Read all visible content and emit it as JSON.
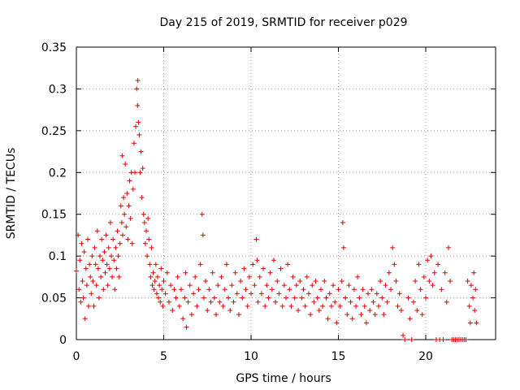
{
  "chart_data": {
    "type": "scatter",
    "title": "Day 215 of 2019, SRMTID for receiver p029",
    "xlabel": "GPS time / hours",
    "ylabel": "SRMTID / TECUs",
    "xlim": [
      0,
      24
    ],
    "ylim": [
      0,
      0.35
    ],
    "xticks": [
      0,
      5,
      10,
      15,
      20
    ],
    "xtick_labels": [
      "0",
      "5",
      "10",
      "15",
      "20"
    ],
    "yticks": [
      0,
      0.05,
      0.1,
      0.15,
      0.2,
      0.25,
      0.3,
      0.35
    ],
    "ytick_labels": [
      "0",
      "0.05",
      "0.1",
      "0.15",
      "0.2",
      "0.25",
      "0.3",
      "0.35"
    ],
    "grid": true,
    "marker": "+",
    "marker_color": "#e00000",
    "series": [
      {
        "name": "SRMTID",
        "points": [
          [
            0.0,
            0.082
          ],
          [
            0.1,
            0.125
          ],
          [
            0.15,
            0.06
          ],
          [
            0.2,
            0.095
          ],
          [
            0.25,
            0.045
          ],
          [
            0.3,
            0.115
          ],
          [
            0.35,
            0.07
          ],
          [
            0.4,
            0.05
          ],
          [
            0.45,
            0.105
          ],
          [
            0.5,
            0.025
          ],
          [
            0.55,
            0.085
          ],
          [
            0.6,
            0.065
          ],
          [
            0.65,
            0.12
          ],
          [
            0.7,
            0.04
          ],
          [
            0.75,
            0.09
          ],
          [
            0.8,
            0.075
          ],
          [
            0.85,
            0.055
          ],
          [
            0.9,
            0.1
          ],
          [
            0.95,
            0.07
          ],
          [
            1.0,
            0.04
          ],
          [
            1.05,
            0.11
          ],
          [
            1.1,
            0.09
          ],
          [
            1.15,
            0.065
          ],
          [
            1.2,
            0.13
          ],
          [
            1.25,
            0.085
          ],
          [
            1.3,
            0.05
          ],
          [
            1.35,
            0.1
          ],
          [
            1.4,
            0.075
          ],
          [
            1.45,
            0.12
          ],
          [
            1.5,
            0.095
          ],
          [
            1.55,
            0.06
          ],
          [
            1.6,
            0.105
          ],
          [
            1.65,
            0.08
          ],
          [
            1.7,
            0.125
          ],
          [
            1.75,
            0.09
          ],
          [
            1.8,
            0.065
          ],
          [
            1.85,
            0.11
          ],
          [
            1.9,
            0.085
          ],
          [
            1.95,
            0.14
          ],
          [
            2.0,
            0.1
          ],
          [
            2.05,
            0.075
          ],
          [
            2.1,
            0.12
          ],
          [
            2.15,
            0.095
          ],
          [
            2.2,
            0.06
          ],
          [
            2.25,
            0.11
          ],
          [
            2.3,
            0.085
          ],
          [
            2.35,
            0.13
          ],
          [
            2.4,
            0.1
          ],
          [
            2.45,
            0.075
          ],
          [
            2.5,
            0.115
          ],
          [
            2.55,
            0.16
          ],
          [
            2.6,
            0.14
          ],
          [
            2.62,
            0.22
          ],
          [
            2.65,
            0.125
          ],
          [
            2.7,
            0.17
          ],
          [
            2.75,
            0.15
          ],
          [
            2.8,
            0.21
          ],
          [
            2.85,
            0.135
          ],
          [
            2.9,
            0.175
          ],
          [
            2.95,
            0.12
          ],
          [
            3.0,
            0.16
          ],
          [
            3.05,
            0.19
          ],
          [
            3.1,
            0.145
          ],
          [
            3.15,
            0.2
          ],
          [
            3.2,
            0.115
          ],
          [
            3.25,
            0.18
          ],
          [
            3.3,
            0.235
          ],
          [
            3.35,
            0.2
          ],
          [
            3.4,
            0.255
          ],
          [
            3.45,
            0.3
          ],
          [
            3.5,
            0.28
          ],
          [
            3.52,
            0.31
          ],
          [
            3.55,
            0.26
          ],
          [
            3.6,
            0.245
          ],
          [
            3.65,
            0.2
          ],
          [
            3.7,
            0.225
          ],
          [
            3.75,
            0.17
          ],
          [
            3.8,
            0.205
          ],
          [
            3.85,
            0.15
          ],
          [
            3.9,
            0.14
          ],
          [
            3.95,
            0.115
          ],
          [
            4.0,
            0.13
          ],
          [
            4.05,
            0.1
          ],
          [
            4.1,
            0.145
          ],
          [
            4.15,
            0.12
          ],
          [
            4.2,
            0.09
          ],
          [
            4.25,
            0.075
          ],
          [
            4.3,
            0.11
          ],
          [
            4.35,
            0.065
          ],
          [
            4.4,
            0.08
          ],
          [
            4.45,
            0.06
          ],
          [
            4.5,
            0.07
          ],
          [
            4.55,
            0.09
          ],
          [
            4.6,
            0.055
          ],
          [
            4.65,
            0.075
          ],
          [
            4.7,
            0.05
          ],
          [
            4.75,
            0.065
          ],
          [
            4.8,
            0.045
          ],
          [
            4.85,
            0.085
          ],
          [
            4.9,
            0.06
          ],
          [
            4.95,
            0.04
          ],
          [
            5.0,
            0.07
          ],
          [
            5.1,
            0.055
          ],
          [
            5.2,
            0.08
          ],
          [
            5.3,
            0.045
          ],
          [
            5.4,
            0.065
          ],
          [
            5.5,
            0.035
          ],
          [
            5.6,
            0.06
          ],
          [
            5.7,
            0.05
          ],
          [
            5.8,
            0.075
          ],
          [
            5.9,
            0.04
          ],
          [
            6.0,
            0.06
          ],
          [
            6.1,
            0.025
          ],
          [
            6.2,
            0.05
          ],
          [
            6.25,
            0.08
          ],
          [
            6.3,
            0.015
          ],
          [
            6.4,
            0.045
          ],
          [
            6.5,
            0.065
          ],
          [
            6.6,
            0.03
          ],
          [
            6.7,
            0.055
          ],
          [
            6.8,
            0.075
          ],
          [
            6.9,
            0.04
          ],
          [
            7.0,
            0.06
          ],
          [
            7.1,
            0.09
          ],
          [
            7.2,
            0.15
          ],
          [
            7.25,
            0.125
          ],
          [
            7.3,
            0.05
          ],
          [
            7.4,
            0.07
          ],
          [
            7.5,
            0.035
          ],
          [
            7.6,
            0.06
          ],
          [
            7.7,
            0.045
          ],
          [
            7.8,
            0.08
          ],
          [
            7.9,
            0.05
          ],
          [
            8.0,
            0.03
          ],
          [
            8.1,
            0.065
          ],
          [
            8.2,
            0.045
          ],
          [
            8.3,
            0.075
          ],
          [
            8.4,
            0.04
          ],
          [
            8.5,
            0.06
          ],
          [
            8.6,
            0.09
          ],
          [
            8.7,
            0.05
          ],
          [
            8.8,
            0.035
          ],
          [
            8.9,
            0.065
          ],
          [
            9.0,
            0.045
          ],
          [
            9.1,
            0.08
          ],
          [
            9.2,
            0.055
          ],
          [
            9.3,
            0.03
          ],
          [
            9.4,
            0.07
          ],
          [
            9.5,
            0.05
          ],
          [
            9.6,
            0.085
          ],
          [
            9.7,
            0.06
          ],
          [
            9.8,
            0.04
          ],
          [
            9.9,
            0.075
          ],
          [
            10.0,
            0.055
          ],
          [
            10.1,
            0.09
          ],
          [
            10.2,
            0.065
          ],
          [
            10.3,
            0.12
          ],
          [
            10.35,
            0.095
          ],
          [
            10.4,
            0.045
          ],
          [
            10.5,
            0.075
          ],
          [
            10.6,
            0.055
          ],
          [
            10.7,
            0.085
          ],
          [
            10.8,
            0.04
          ],
          [
            10.9,
            0.065
          ],
          [
            11.0,
            0.05
          ],
          [
            11.1,
            0.08
          ],
          [
            11.2,
            0.06
          ],
          [
            11.3,
            0.095
          ],
          [
            11.4,
            0.045
          ],
          [
            11.5,
            0.07
          ],
          [
            11.6,
            0.055
          ],
          [
            11.7,
            0.085
          ],
          [
            11.8,
            0.04
          ],
          [
            11.9,
            0.065
          ],
          [
            12.0,
            0.05
          ],
          [
            12.1,
            0.09
          ],
          [
            12.2,
            0.06
          ],
          [
            12.3,
            0.04
          ],
          [
            12.4,
            0.075
          ],
          [
            12.5,
            0.05
          ],
          [
            12.6,
            0.065
          ],
          [
            12.7,
            0.035
          ],
          [
            12.8,
            0.07
          ],
          [
            12.9,
            0.05
          ],
          [
            13.0,
            0.06
          ],
          [
            13.1,
            0.04
          ],
          [
            13.2,
            0.075
          ],
          [
            13.3,
            0.055
          ],
          [
            13.4,
            0.03
          ],
          [
            13.5,
            0.065
          ],
          [
            13.6,
            0.045
          ],
          [
            13.7,
            0.07
          ],
          [
            13.8,
            0.05
          ],
          [
            13.9,
            0.035
          ],
          [
            14.0,
            0.06
          ],
          [
            14.1,
            0.04
          ],
          [
            14.2,
            0.07
          ],
          [
            14.3,
            0.05
          ],
          [
            14.4,
            0.025
          ],
          [
            14.5,
            0.055
          ],
          [
            14.6,
            0.04
          ],
          [
            14.7,
            0.065
          ],
          [
            14.8,
            0.045
          ],
          [
            14.9,
            0.02
          ],
          [
            15.0,
            0.06
          ],
          [
            15.1,
            0.04
          ],
          [
            15.2,
            0.07
          ],
          [
            15.25,
            0.14
          ],
          [
            15.3,
            0.11
          ],
          [
            15.4,
            0.05
          ],
          [
            15.5,
            0.03
          ],
          [
            15.6,
            0.065
          ],
          [
            15.7,
            0.045
          ],
          [
            15.8,
            0.025
          ],
          [
            15.9,
            0.06
          ],
          [
            16.0,
            0.04
          ],
          [
            16.1,
            0.075
          ],
          [
            16.2,
            0.05
          ],
          [
            16.3,
            0.03
          ],
          [
            16.4,
            0.06
          ],
          [
            16.5,
            0.04
          ],
          [
            16.6,
            0.02
          ],
          [
            16.7,
            0.055
          ],
          [
            16.8,
            0.035
          ],
          [
            16.9,
            0.06
          ],
          [
            17.0,
            0.045
          ],
          [
            17.1,
            0.03
          ],
          [
            17.2,
            0.055
          ],
          [
            17.3,
            0.04
          ],
          [
            17.4,
            0.07
          ],
          [
            17.5,
            0.05
          ],
          [
            17.6,
            0.03
          ],
          [
            17.7,
            0.065
          ],
          [
            17.8,
            0.045
          ],
          [
            17.9,
            0.08
          ],
          [
            18.0,
            0.06
          ],
          [
            18.1,
            0.11
          ],
          [
            18.2,
            0.09
          ],
          [
            18.3,
            0.07
          ],
          [
            18.4,
            0.04
          ],
          [
            18.5,
            0.055
          ],
          [
            18.6,
            0.035
          ],
          [
            18.7,
            0.005
          ],
          [
            18.8,
            0.0
          ],
          [
            19.0,
            0.05
          ],
          [
            19.1,
            0.025
          ],
          [
            19.2,
            0.0
          ],
          [
            19.3,
            0.045
          ],
          [
            19.4,
            0.07
          ],
          [
            19.5,
            0.035
          ],
          [
            19.6,
            0.09
          ],
          [
            19.7,
            0.06
          ],
          [
            19.8,
            0.03
          ],
          [
            19.9,
            0.075
          ],
          [
            20.0,
            0.05
          ],
          [
            20.1,
            0.095
          ],
          [
            20.2,
            0.07
          ],
          [
            20.3,
            0.1
          ],
          [
            20.4,
            0.065
          ],
          [
            20.5,
            0.08
          ],
          [
            20.6,
            0.0
          ],
          [
            20.7,
            0.09
          ],
          [
            20.8,
            0.0
          ],
          [
            20.9,
            0.06
          ],
          [
            21.0,
            0.0
          ],
          [
            21.1,
            0.08
          ],
          [
            21.2,
            0.045
          ],
          [
            21.3,
            0.11
          ],
          [
            21.4,
            0.07
          ],
          [
            21.5,
            0.0
          ],
          [
            21.6,
            0.0
          ],
          [
            21.7,
            0.0
          ],
          [
            21.8,
            0.0
          ],
          [
            21.9,
            0.0
          ],
          [
            22.0,
            0.0
          ],
          [
            22.1,
            0.0
          ],
          [
            22.2,
            0.0
          ],
          [
            22.3,
            0.0
          ],
          [
            22.4,
            0.07
          ],
          [
            22.5,
            0.04
          ],
          [
            22.55,
            0.02
          ],
          [
            22.6,
            0.065
          ],
          [
            22.7,
            0.05
          ],
          [
            22.75,
            0.08
          ],
          [
            22.8,
            0.035
          ],
          [
            22.85,
            0.06
          ],
          [
            22.9,
            0.02
          ]
        ]
      }
    ]
  }
}
